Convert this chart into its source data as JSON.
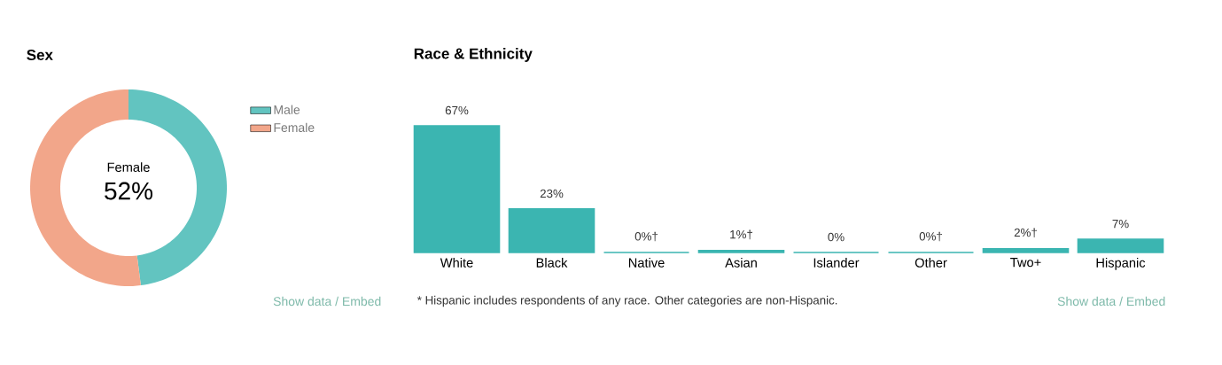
{
  "chart_data": [
    {
      "type": "donut",
      "title": "Sex",
      "categories": [
        "Male",
        "Female"
      ],
      "values": [
        48,
        52
      ],
      "colors": [
        "#62c4c0",
        "#f2a68a"
      ],
      "value_labels": [
        null,
        "52%"
      ],
      "legend": "top right",
      "annotations": [
        "Show data / Embed"
      ]
    },
    {
      "type": "bar",
      "title": "Race & Ethnicity",
      "categories": [
        "White",
        "Black",
        "Native",
        "Asian",
        "Islander",
        "Other",
        "Two+",
        "Hispanic"
      ],
      "values": [
        67,
        23,
        0,
        1,
        0,
        0,
        2,
        7
      ],
      "color": "#3bb5b1",
      "value_labels": [
        "67%",
        "23%",
        "0%†",
        "1%†",
        "0%",
        "0%†",
        "2%†",
        "7%"
      ],
      "annotations": [
        "* Hispanic includes respondents of any race. Other categories are non-Hispanic.",
        "Show data / Embed"
      ]
    }
  ]
}
